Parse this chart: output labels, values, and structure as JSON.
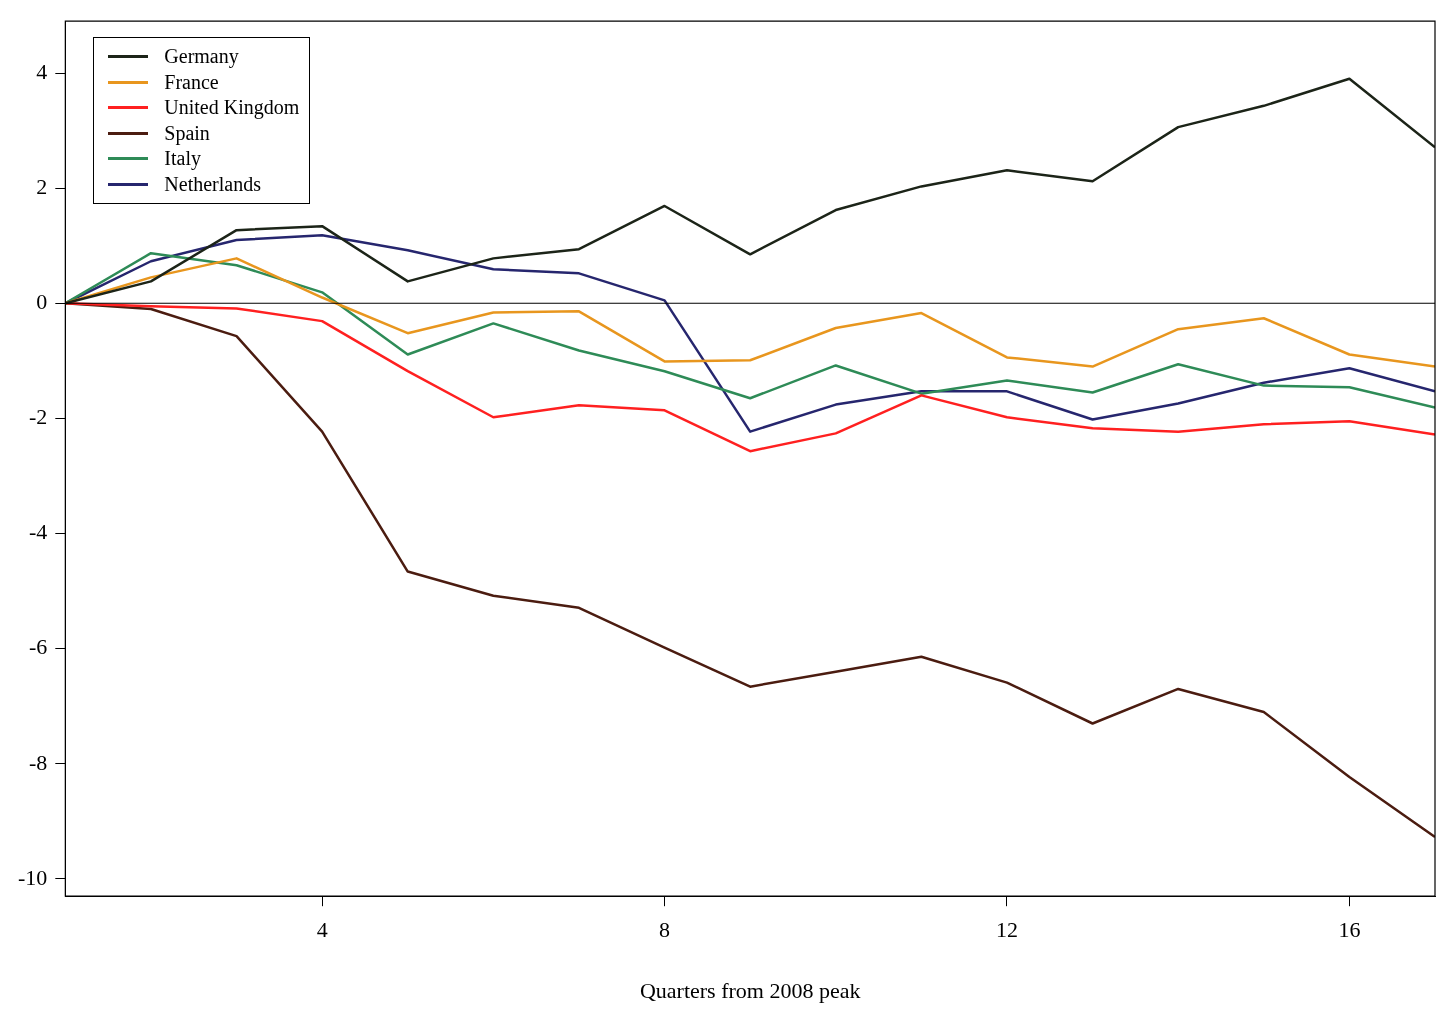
{
  "chart_data": {
    "type": "line",
    "xlabel": "Quarters from 2008 peak",
    "x": [
      1,
      2,
      3,
      4,
      5,
      6,
      7,
      8,
      9,
      10,
      11,
      12,
      13,
      14,
      15,
      16,
      17
    ],
    "xlim": [
      1,
      17
    ],
    "xticks": [
      4,
      8,
      12,
      16
    ],
    "ylim": [
      -10.3,
      4.9
    ],
    "yticks": [
      4,
      2,
      0,
      -2,
      -4,
      -6,
      -8,
      -10
    ],
    "grid": false,
    "legend": "top left",
    "marker": "none",
    "line_style": "solid",
    "ref_lines": [
      {
        "axis": "y",
        "value": 0,
        "color": "#000000"
      }
    ],
    "series": [
      {
        "name": "Germany",
        "color": "#1c2418",
        "values": [
          0,
          0.38,
          1.27,
          1.34,
          0.38,
          0.78,
          0.94,
          1.69,
          0.85,
          1.62,
          2.03,
          2.31,
          2.12,
          3.06,
          3.43,
          3.9,
          2.71
        ]
      },
      {
        "name": "France",
        "color": "#e8961e",
        "values": [
          0,
          0.45,
          0.78,
          0.1,
          -0.52,
          -0.16,
          -0.14,
          -1.01,
          -0.99,
          -0.43,
          -0.17,
          -0.94,
          -1.1,
          -0.45,
          -0.26,
          -0.89,
          -1.1
        ]
      },
      {
        "name": "United Kingdom",
        "color": "#ff2020",
        "values": [
          0,
          -0.05,
          -0.09,
          -0.31,
          -1.18,
          -1.98,
          -1.77,
          -1.86,
          -2.57,
          -2.26,
          -1.6,
          -1.98,
          -2.17,
          -2.23,
          -2.1,
          -2.05,
          -2.28
        ]
      },
      {
        "name": "Spain",
        "color": "#4b1c10",
        "values": [
          0,
          -0.1,
          -0.57,
          -2.23,
          -4.66,
          -5.08,
          -5.29,
          -5.98,
          -6.66,
          -6.4,
          -6.14,
          -6.59,
          -7.3,
          -6.7,
          -7.1,
          -8.23,
          -9.27
        ]
      },
      {
        "name": "Italy",
        "color": "#2e8b57",
        "values": [
          0,
          0.87,
          0.66,
          0.19,
          -0.89,
          -0.35,
          -0.82,
          -1.18,
          -1.65,
          -1.08,
          -1.57,
          -1.34,
          -1.55,
          -1.06,
          -1.43,
          -1.46,
          -1.81
        ]
      },
      {
        "name": "Netherlands",
        "color": "#26266e",
        "values": [
          0,
          0.73,
          1.1,
          1.18,
          0.92,
          0.59,
          0.52,
          0.05,
          -2.23,
          -1.76,
          -1.53,
          -1.53,
          -2.02,
          -1.74,
          -1.38,
          -1.13,
          -1.53
        ]
      }
    ]
  }
}
